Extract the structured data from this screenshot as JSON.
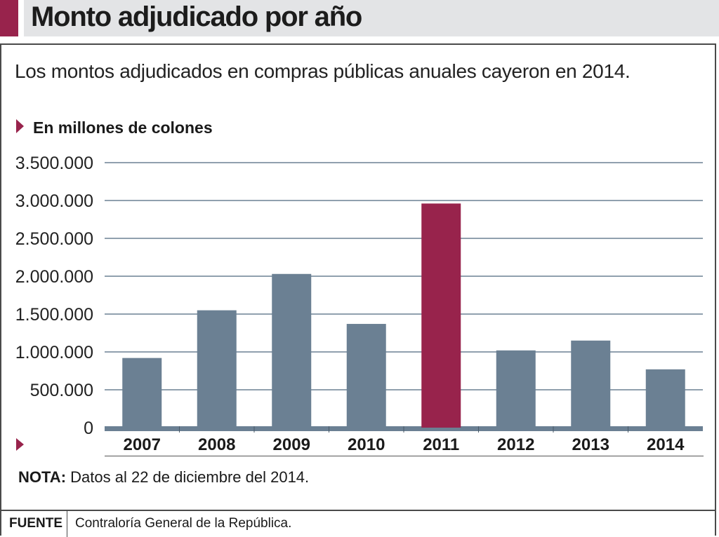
{
  "header": {
    "title": "Monto adjudicado por año",
    "accent_color": "#98234c"
  },
  "subtitle": "Los montos adjudicados en compras públicas anuales cayeron en 2014.",
  "unit_label": "En millones de colones",
  "note": {
    "label": "NOTA:",
    "text": "Datos al 22 de diciembre del 2014."
  },
  "footer": {
    "source_label": "FUENTE",
    "source_text": "Contraloría General de la República."
  },
  "chart_data": {
    "type": "bar",
    "title": "Monto adjudicado por año",
    "ylabel": "En millones de colones",
    "categories": [
      "2007",
      "2008",
      "2009",
      "2010",
      "2011",
      "2012",
      "2013",
      "2014"
    ],
    "values": [
      920000,
      1550000,
      2030000,
      1370000,
      2960000,
      1020000,
      1150000,
      770000
    ],
    "highlight_category": "2011",
    "ylim": [
      0,
      3500000
    ],
    "y_ticks": [
      0,
      500000,
      1000000,
      1500000,
      2000000,
      2500000,
      3000000,
      3500000
    ],
    "y_tick_labels": [
      "0",
      "500.000",
      "1.000.000",
      "1.500.000",
      "2.000.000",
      "2.500.000",
      "3.000.000",
      "3.500.000"
    ],
    "grid": true,
    "colors": {
      "bar": "#6b8093",
      "highlight": "#98234c",
      "grid": "#6b8093",
      "baseline": "#6b8093"
    }
  }
}
